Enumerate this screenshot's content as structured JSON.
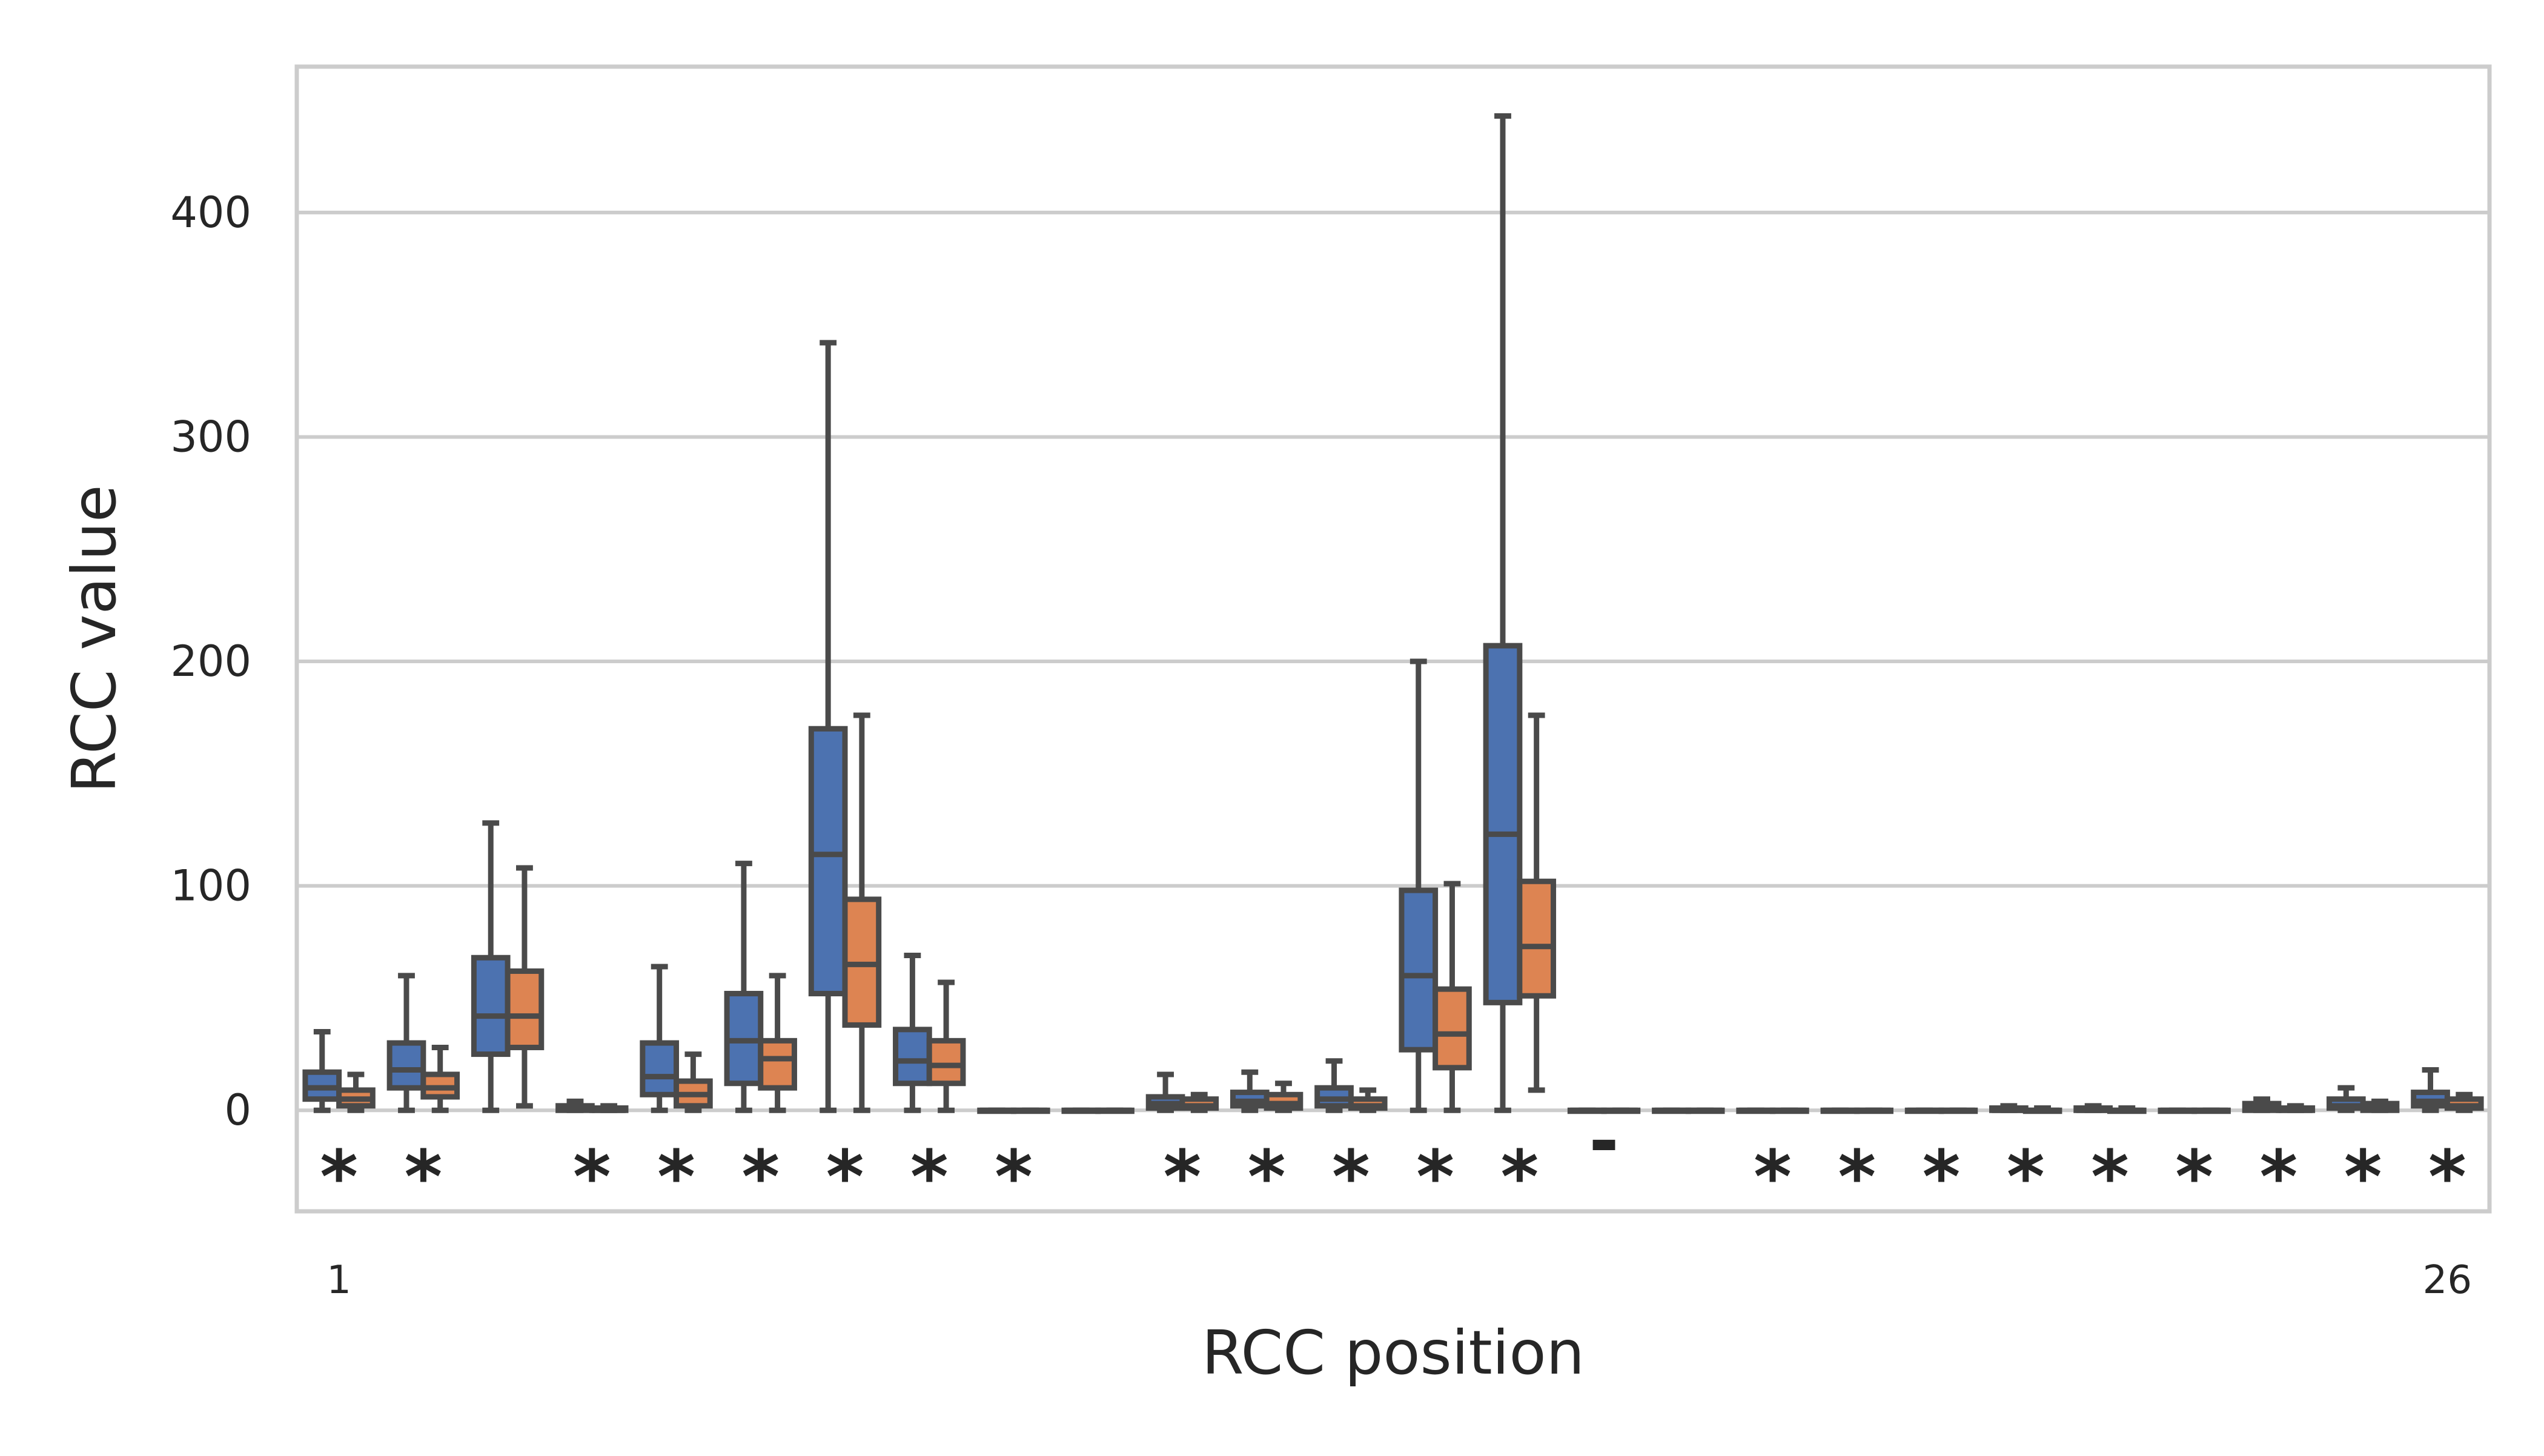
{
  "chart_data": {
    "type": "box",
    "xlabel": "RCC position",
    "ylabel": "RCC value",
    "ylim": [
      -45,
      465
    ],
    "y_ticks": [
      0,
      100,
      200,
      300,
      400
    ],
    "x_tick_labels": [
      {
        "position": 1,
        "label": "1"
      },
      {
        "position": 26,
        "label": "26"
      }
    ],
    "grid": "horizontal",
    "legend": "none",
    "colors": {
      "series_a": "#4c72b0",
      "series_b": "#dd8452",
      "line": "#4a4a4a",
      "grid": "#cccccc",
      "frame": "#cccccc"
    },
    "series": [
      {
        "boxes": [
          [
            0,
            5,
            10,
            17,
            35
          ],
          [
            0,
            10,
            18,
            30,
            60
          ],
          [
            0,
            25,
            42,
            68,
            128
          ],
          [
            0,
            0,
            1,
            2,
            4
          ],
          [
            0,
            7,
            15,
            30,
            64
          ],
          [
            0,
            12,
            31,
            52,
            110
          ],
          [
            0,
            52,
            114,
            170,
            342
          ],
          [
            0,
            12,
            22,
            36,
            69
          ],
          [
            0,
            0,
            0,
            0,
            0
          ],
          [
            0,
            0,
            0,
            0,
            0
          ],
          [
            0,
            1,
            3,
            6,
            16
          ],
          [
            0,
            2,
            4,
            8,
            17
          ],
          [
            0,
            2,
            5,
            10,
            22
          ],
          [
            0,
            27,
            60,
            98,
            200
          ],
          [
            0,
            48,
            123,
            207,
            443
          ],
          [
            0,
            0,
            0,
            0,
            0
          ],
          [
            0,
            0,
            0,
            0,
            0
          ],
          [
            0,
            0,
            0,
            0,
            0
          ],
          [
            0,
            0,
            0,
            0,
            0
          ],
          [
            0,
            0,
            0,
            0,
            0
          ],
          [
            0,
            0,
            0,
            1,
            2
          ],
          [
            0,
            0,
            0,
            1,
            2
          ],
          [
            0,
            0,
            0,
            0,
            0
          ],
          [
            0,
            0,
            1,
            3,
            5
          ],
          [
            0,
            1,
            2,
            5,
            10
          ],
          [
            0,
            2,
            4,
            8,
            18
          ]
        ]
      },
      {
        "boxes": [
          [
            0,
            2,
            5,
            9,
            16
          ],
          [
            0,
            6,
            10,
            16,
            28
          ],
          [
            2,
            28,
            42,
            62,
            108
          ],
          [
            0,
            0,
            0,
            1,
            2
          ],
          [
            0,
            2,
            7,
            13,
            25
          ],
          [
            0,
            10,
            23,
            31,
            60
          ],
          [
            0,
            38,
            65,
            94,
            176
          ],
          [
            0,
            12,
            20,
            31,
            57
          ],
          [
            0,
            0,
            0,
            0,
            0
          ],
          [
            0,
            0,
            0,
            0,
            0
          ],
          [
            0,
            1,
            2,
            5,
            7
          ],
          [
            0,
            1,
            3,
            7,
            12
          ],
          [
            0,
            1,
            2,
            5,
            9
          ],
          [
            0,
            19,
            34,
            54,
            101
          ],
          [
            9,
            51,
            73,
            102,
            176
          ],
          [
            0,
            0,
            0,
            0,
            0
          ],
          [
            0,
            0,
            0,
            0,
            0
          ],
          [
            0,
            0,
            0,
            0,
            0
          ],
          [
            0,
            0,
            0,
            0,
            0
          ],
          [
            0,
            0,
            0,
            0,
            0
          ],
          [
            0,
            0,
            0,
            0,
            1
          ],
          [
            0,
            0,
            0,
            0,
            1
          ],
          [
            0,
            0,
            0,
            0,
            0
          ],
          [
            0,
            0,
            0,
            1,
            2
          ],
          [
            0,
            0,
            1,
            3,
            4
          ],
          [
            0,
            1,
            2,
            5,
            7
          ]
        ]
      }
    ],
    "annotations": [
      "*",
      "*",
      "",
      "*",
      "*",
      "*",
      "*",
      "*",
      "*",
      "",
      "*",
      "*",
      "*",
      "*",
      "*",
      "-",
      "",
      "*",
      "*",
      "*",
      "*",
      "*",
      "*",
      "*",
      "*",
      "*"
    ]
  }
}
